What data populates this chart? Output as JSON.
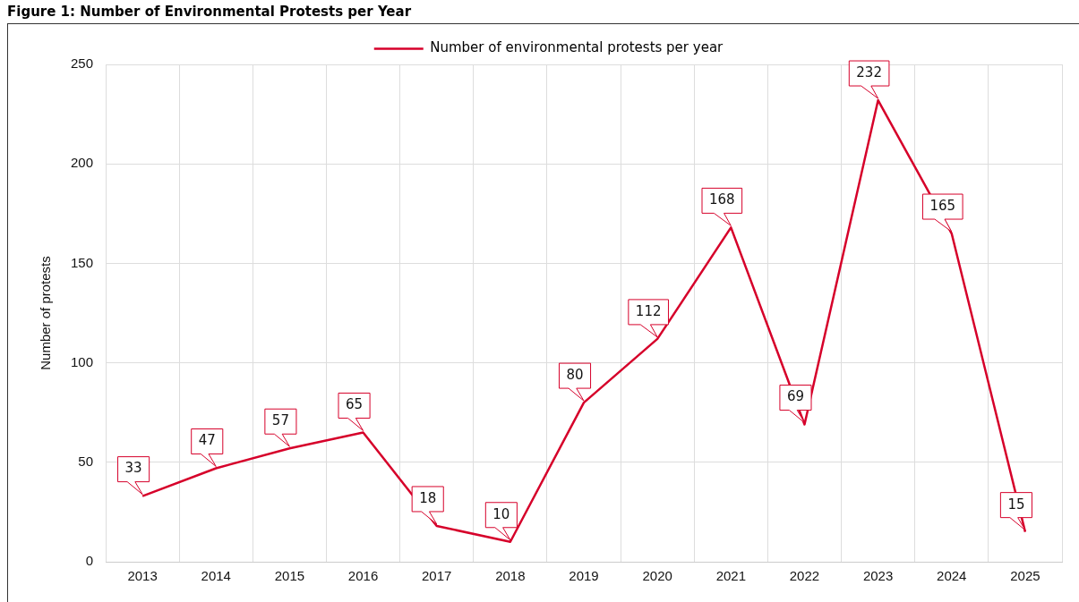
{
  "chart_data": {
    "type": "line",
    "title": "Figure 1: Number of Environmental Protests per Year",
    "ylabel": "Number of protests",
    "categories": [
      "2013",
      "2014",
      "2015",
      "2016",
      "2017",
      "2018",
      "2019",
      "2020",
      "2021",
      "2022",
      "2023",
      "2024",
      "2025"
    ],
    "series": [
      {
        "name": "Number of environmental protests per year",
        "color": "#d6002a",
        "values": [
          33,
          47,
          57,
          65,
          18,
          10,
          80,
          112,
          168,
          69,
          232,
          165,
          15
        ]
      }
    ],
    "ylim": [
      0,
      250
    ],
    "yticks": [
      0,
      50,
      100,
      150,
      200,
      250
    ],
    "grid": true,
    "legend": "top",
    "marker": "none",
    "data_labels": true
  }
}
